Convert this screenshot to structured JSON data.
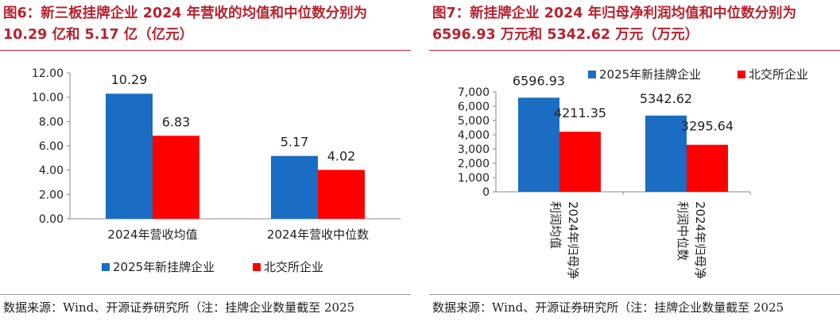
{
  "charts": [
    {
      "title": "图6：新三板挂牌企业 2024 年营收的均值和中位数分别为 10.29 亿和 5.17 亿（亿元）",
      "source": "数据来源：Wind、开源证券研究所（注：挂牌企业数量截至 2025",
      "chart_data": {
        "type": "bar",
        "categories": [
          "2024年营收均值",
          "2024年营收中位数"
        ],
        "series": [
          {
            "name": "2025年新挂牌企业",
            "values": [
              10.29,
              5.17
            ],
            "labels": [
              "10.29",
              "5.17"
            ],
            "color": "#1a6dc2"
          },
          {
            "name": "北交所企业",
            "values": [
              6.83,
              4.02
            ],
            "labels": [
              "6.83",
              "4.02"
            ],
            "color": "#ff0000"
          }
        ],
        "ylim": [
          0,
          12
        ],
        "yticks": [
          "0.00",
          "2.00",
          "4.00",
          "6.00",
          "8.00",
          "10.00",
          "12.00"
        ],
        "legend": "bottom",
        "grid": false
      }
    },
    {
      "title": "图7：新挂牌企业 2024 年归母净利润均值和中位数分别为 6596.93 万元和 5342.62 万元（万元）",
      "source": "数据来源：Wind、开源证券研究所（注：挂牌企业数量截至 2025",
      "chart_data": {
        "type": "bar",
        "categories": [
          "2024年归母净利润均值",
          "2024年归母净利润中位数"
        ],
        "category_lines": [
          [
            "2024年归母净",
            "利润均值"
          ],
          [
            "2024年归母净",
            "利润中位数"
          ]
        ],
        "series": [
          {
            "name": "2025年新挂牌企业",
            "values": [
              6596.93,
              5342.62
            ],
            "labels": [
              "6596.93",
              "5342.62"
            ],
            "color": "#1a6dc2"
          },
          {
            "name": "北交所企业",
            "values": [
              4211.35,
              3295.64
            ],
            "labels": [
              "4211.35",
              "3295.64"
            ],
            "color": "#ff0000"
          }
        ],
        "ylim": [
          0,
          7000
        ],
        "yticks": [
          "0",
          "1,000",
          "2,000",
          "3,000",
          "4,000",
          "5,000",
          "6,000",
          "7,000"
        ],
        "legend": "top",
        "grid": false
      }
    }
  ]
}
